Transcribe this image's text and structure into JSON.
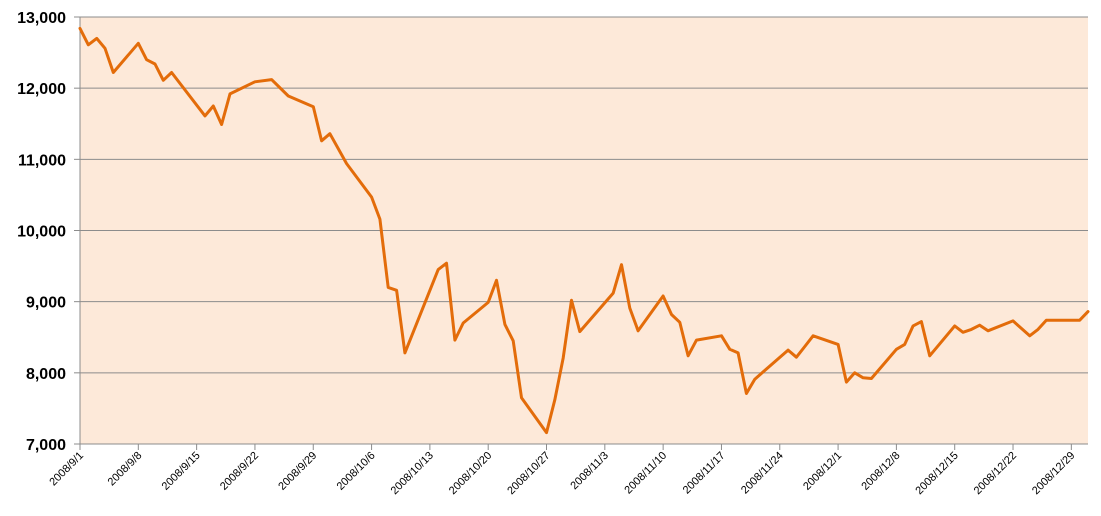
{
  "chart_data": {
    "type": "line",
    "title": "",
    "xlabel": "",
    "ylabel": "",
    "ylim": [
      7000,
      13000
    ],
    "y_ticks": [
      7000,
      8000,
      9000,
      10000,
      11000,
      12000,
      13000
    ],
    "y_tick_labels": [
      "7,000",
      "8,000",
      "9,000",
      "10,000",
      "11,000",
      "12,000",
      "13,000"
    ],
    "x_tick_labels": [
      "2008/9/1",
      "2008/9/8",
      "2008/9/15",
      "2008/9/22",
      "2008/9/29",
      "2008/10/6",
      "2008/10/13",
      "2008/10/20",
      "2008/10/27",
      "2008/11/3",
      "2008/11/10",
      "2008/11/17",
      "2008/11/24",
      "2008/12/1",
      "2008/12/8",
      "2008/12/15",
      "2008/12/22",
      "2008/12/29"
    ],
    "x_range": [
      "2008-09-01",
      "2008-12-31"
    ],
    "grid": true,
    "legend": "none",
    "colors": {
      "line": "#e36c0a",
      "plot_background": "#fde9d9",
      "gridline": "#8c8c8c",
      "axis": "#8c8c8c"
    },
    "series": [
      {
        "x": [
          "2008-09-01",
          "2008-09-02",
          "2008-09-03",
          "2008-09-04",
          "2008-09-05",
          "2008-09-08",
          "2008-09-09",
          "2008-09-10",
          "2008-09-11",
          "2008-09-12",
          "2008-09-16",
          "2008-09-17",
          "2008-09-18",
          "2008-09-19",
          "2008-09-22",
          "2008-09-24",
          "2008-09-26",
          "2008-09-29",
          "2008-09-30",
          "2008-10-01",
          "2008-10-03",
          "2008-10-06",
          "2008-10-07",
          "2008-10-08",
          "2008-10-09",
          "2008-10-10",
          "2008-10-14",
          "2008-10-15",
          "2008-10-16",
          "2008-10-17",
          "2008-10-20",
          "2008-10-21",
          "2008-10-22",
          "2008-10-23",
          "2008-10-24",
          "2008-10-27",
          "2008-10-28",
          "2008-10-29",
          "2008-10-30",
          "2008-10-31",
          "2008-11-04",
          "2008-11-05",
          "2008-11-06",
          "2008-11-07",
          "2008-11-10",
          "2008-11-11",
          "2008-11-12",
          "2008-11-13",
          "2008-11-14",
          "2008-11-17",
          "2008-11-18",
          "2008-11-19",
          "2008-11-20",
          "2008-11-21",
          "2008-11-25",
          "2008-11-26",
          "2008-11-27",
          "2008-11-28",
          "2008-12-01",
          "2008-12-02",
          "2008-12-03",
          "2008-12-04",
          "2008-12-05",
          "2008-12-08",
          "2008-12-09",
          "2008-12-10",
          "2008-12-11",
          "2008-12-12",
          "2008-12-15",
          "2008-12-16",
          "2008-12-17",
          "2008-12-18",
          "2008-12-19",
          "2008-12-22",
          "2008-12-24",
          "2008-12-25",
          "2008-12-26",
          "2008-12-29",
          "2008-12-30",
          "2008-12-31"
        ],
        "values": [
          12840,
          12610,
          12700,
          12560,
          12220,
          12630,
          12400,
          12340,
          12110,
          12220,
          11610,
          11750,
          11490,
          11920,
          12090,
          12120,
          11890,
          11740,
          11260,
          11360,
          10940,
          10470,
          10160,
          9200,
          9160,
          8280,
          9450,
          9540,
          8460,
          8700,
          8990,
          9300,
          8680,
          8450,
          7650,
          7160,
          7620,
          8210,
          9020,
          8580,
          9120,
          9520,
          8910,
          8590,
          9080,
          8820,
          8710,
          8240,
          8460,
          8520,
          8330,
          8280,
          7710,
          7910,
          8320,
          8220,
          8370,
          8520,
          8400,
          7870,
          8000,
          7930,
          7920,
          8330,
          8400,
          8660,
          8720,
          8240,
          8660,
          8570,
          8610,
          8670,
          8590,
          8730,
          8520,
          8610,
          8740,
          8740,
          8740,
          8860
        ]
      }
    ]
  }
}
